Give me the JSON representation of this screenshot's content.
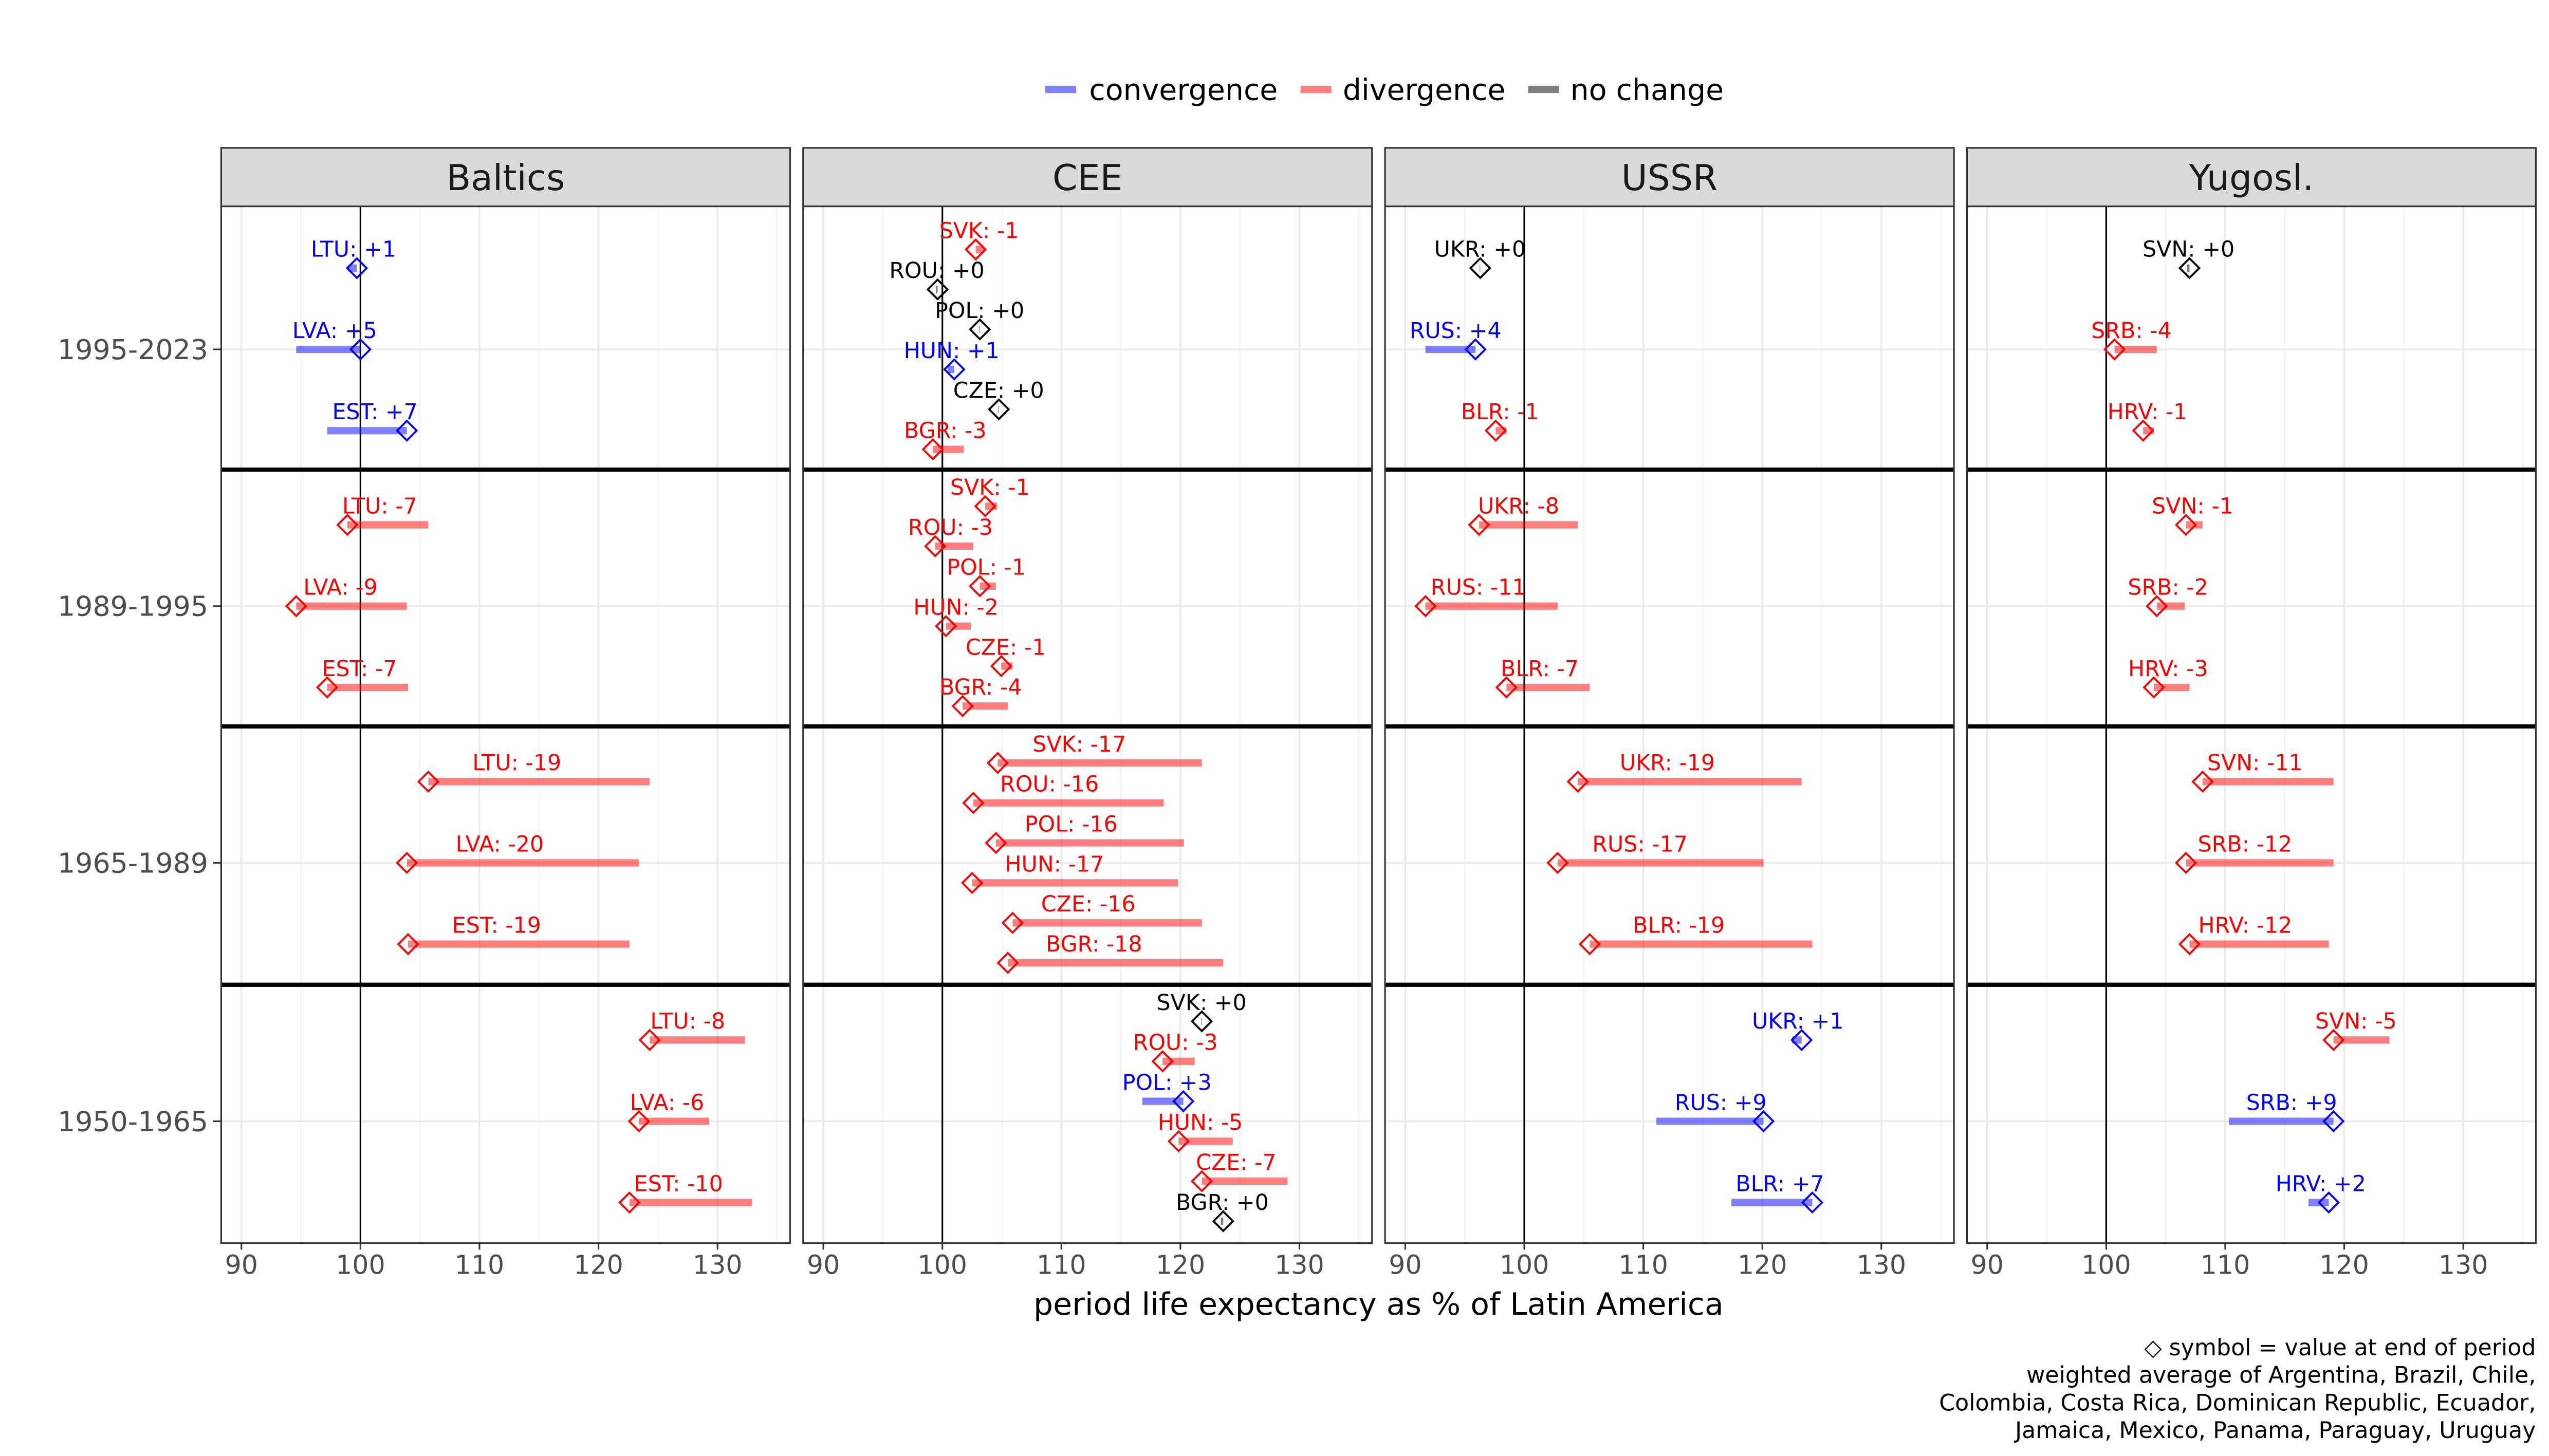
{
  "chart_data": {
    "type": "scatter",
    "xlabel": "period life expectancy as % of Latin America",
    "xticks": [
      90,
      100,
      110,
      120,
      130
    ],
    "xlim": [
      88.3,
      136.1
    ],
    "reference_line": 100,
    "grid": true,
    "legend": {
      "placement": "top",
      "entries": [
        {
          "label": "convergence",
          "color": "#0000FF"
        },
        {
          "label": "divergence",
          "color": "#FF0000"
        },
        {
          "label": "no change",
          "color": "#000000"
        }
      ]
    },
    "periods": [
      "1995-2023",
      "1989-1995",
      "1965-1989",
      "1950-1965"
    ],
    "caption": [
      "◇ symbol = value at end of period",
      "weighted average of Argentina, Brazil, Chile,",
      "Colombia, Costa Rica, Dominican Republic, Ecuador,",
      "Jamaica, Mexico, Panama, Paraguay, Uruguay"
    ],
    "panels": [
      {
        "facet": "Baltics",
        "rows": [
          {
            "period": "1995-2023",
            "points": [
              {
                "country": "LTU",
                "start": 99.0,
                "end": 99.7,
                "label": "LTU: +1",
                "status": "convergence"
              },
              {
                "country": "LVA",
                "start": 94.6,
                "end": 100.0,
                "label": "LVA: +5",
                "status": "convergence"
              },
              {
                "country": "EST",
                "start": 97.2,
                "end": 103.9,
                "label": "EST: +7",
                "status": "convergence"
              }
            ]
          },
          {
            "period": "1989-1995",
            "points": [
              {
                "country": "LTU",
                "start": 105.7,
                "end": 98.9,
                "label": "LTU: -7",
                "status": "divergence"
              },
              {
                "country": "LVA",
                "start": 103.9,
                "end": 94.6,
                "label": "LVA: -9",
                "status": "divergence"
              },
              {
                "country": "EST",
                "start": 104.0,
                "end": 97.2,
                "label": "EST: -7",
                "status": "divergence"
              }
            ]
          },
          {
            "period": "1965-1989",
            "points": [
              {
                "country": "LTU",
                "start": 124.3,
                "end": 105.7,
                "label": "LTU: -19",
                "status": "divergence"
              },
              {
                "country": "LVA",
                "start": 123.4,
                "end": 103.9,
                "label": "LVA: -20",
                "status": "divergence"
              },
              {
                "country": "EST",
                "start": 122.6,
                "end": 104.0,
                "label": "EST: -19",
                "status": "divergence"
              }
            ]
          },
          {
            "period": "1950-1965",
            "points": [
              {
                "country": "LTU",
                "start": 132.3,
                "end": 124.3,
                "label": "LTU: -8",
                "status": "divergence"
              },
              {
                "country": "LVA",
                "start": 129.3,
                "end": 123.4,
                "label": "LVA: -6",
                "status": "divergence"
              },
              {
                "country": "EST",
                "start": 132.9,
                "end": 122.6,
                "label": "EST: -10",
                "status": "divergence"
              }
            ]
          }
        ]
      },
      {
        "facet": "CEE",
        "rows": [
          {
            "period": "1995-2023",
            "points": [
              {
                "country": "SVK",
                "start": 103.5,
                "end": 102.8,
                "label": "SVK: -1",
                "status": "divergence"
              },
              {
                "country": "ROU",
                "start": 99.45,
                "end": 99.6,
                "label": "ROU: +0",
                "status": "no change"
              },
              {
                "country": "POL",
                "start": 103.1,
                "end": 103.15,
                "label": "POL: +0",
                "status": "no change"
              },
              {
                "country": "HUN",
                "start": 100.45,
                "end": 101.0,
                "label": "HUN: +1",
                "status": "convergence"
              },
              {
                "country": "CZE",
                "start": 104.7,
                "end": 104.75,
                "label": "CZE: +0",
                "status": "no change"
              },
              {
                "country": "BGR",
                "start": 101.8,
                "end": 99.2,
                "label": "BGR: -3",
                "status": "divergence"
              }
            ]
          },
          {
            "period": "1989-1995",
            "points": [
              {
                "country": "SVK",
                "start": 104.6,
                "end": 103.6,
                "label": "SVK: -1",
                "status": "divergence"
              },
              {
                "country": "ROU",
                "start": 102.6,
                "end": 99.4,
                "label": "ROU: -3",
                "status": "divergence"
              },
              {
                "country": "POL",
                "start": 104.5,
                "end": 103.15,
                "label": "POL: -1",
                "status": "divergence"
              },
              {
                "country": "HUN",
                "start": 102.4,
                "end": 100.3,
                "label": "HUN: -2",
                "status": "divergence"
              },
              {
                "country": "CZE",
                "start": 105.9,
                "end": 104.95,
                "label": "CZE: -1",
                "status": "divergence"
              },
              {
                "country": "BGR",
                "start": 105.5,
                "end": 101.7,
                "label": "BGR: -4",
                "status": "divergence"
              }
            ]
          },
          {
            "period": "1965-1989",
            "points": [
              {
                "country": "SVK",
                "start": 121.8,
                "end": 104.65,
                "label": "SVK: -17",
                "status": "divergence"
              },
              {
                "country": "ROU",
                "start": 118.6,
                "end": 102.6,
                "label": "ROU: -16",
                "status": "divergence"
              },
              {
                "country": "POL",
                "start": 120.3,
                "end": 104.5,
                "label": "POL: -16",
                "status": "divergence"
              },
              {
                "country": "HUN",
                "start": 119.8,
                "end": 102.5,
                "label": "HUN: -17",
                "status": "divergence"
              },
              {
                "country": "CZE",
                "start": 121.8,
                "end": 105.9,
                "label": "CZE: -16",
                "status": "divergence"
              },
              {
                "country": "BGR",
                "start": 123.6,
                "end": 105.5,
                "label": "BGR: -18",
                "status": "divergence"
              }
            ]
          },
          {
            "period": "1950-1965",
            "points": [
              {
                "country": "SVK",
                "start": 121.75,
                "end": 121.8,
                "label": "SVK: +0",
                "status": "no change"
              },
              {
                "country": "ROU",
                "start": 121.2,
                "end": 118.5,
                "label": "ROU: -3",
                "status": "divergence"
              },
              {
                "country": "POL",
                "start": 116.8,
                "end": 120.25,
                "label": "POL: +3",
                "status": "convergence"
              },
              {
                "country": "HUN",
                "start": 124.4,
                "end": 119.85,
                "label": "HUN: -5",
                "status": "divergence"
              },
              {
                "country": "CZE",
                "start": 129.0,
                "end": 121.8,
                "label": "CZE: -7",
                "status": "divergence"
              },
              {
                "country": "BGR",
                "start": 123.4,
                "end": 123.6,
                "label": "BGR: +0",
                "status": "no change"
              }
            ]
          }
        ]
      },
      {
        "facet": "USSR",
        "rows": [
          {
            "period": "1995-2023",
            "points": [
              {
                "country": "UKR",
                "start": 96.25,
                "end": 96.3,
                "label": "UKR: +0",
                "status": "no change"
              },
              {
                "country": "RUS",
                "start": 91.7,
                "end": 95.9,
                "label": "RUS: +4",
                "status": "convergence"
              },
              {
                "country": "BLR",
                "start": 98.5,
                "end": 97.6,
                "label": "BLR: -1",
                "status": "divergence"
              }
            ]
          },
          {
            "period": "1989-1995",
            "points": [
              {
                "country": "UKR",
                "start": 104.5,
                "end": 96.2,
                "label": "UKR: -8",
                "status": "divergence"
              },
              {
                "country": "RUS",
                "start": 102.8,
                "end": 91.7,
                "label": "RUS: -11",
                "status": "divergence"
              },
              {
                "country": "BLR",
                "start": 105.5,
                "end": 98.5,
                "label": "BLR: -7",
                "status": "divergence"
              }
            ]
          },
          {
            "period": "1965-1989",
            "points": [
              {
                "country": "UKR",
                "start": 123.3,
                "end": 104.5,
                "label": "UKR: -19",
                "status": "divergence"
              },
              {
                "country": "RUS",
                "start": 120.1,
                "end": 102.8,
                "label": "RUS: -17",
                "status": "divergence"
              },
              {
                "country": "BLR",
                "start": 124.2,
                "end": 105.5,
                "label": "BLR: -19",
                "status": "divergence"
              }
            ]
          },
          {
            "period": "1950-1965",
            "points": [
              {
                "country": "UKR",
                "start": 122.5,
                "end": 123.3,
                "label": "UKR: +1",
                "status": "convergence"
              },
              {
                "country": "RUS",
                "start": 111.1,
                "end": 120.1,
                "label": "RUS: +9",
                "status": "convergence"
              },
              {
                "country": "BLR",
                "start": 117.4,
                "end": 124.2,
                "label": "BLR: +7",
                "status": "convergence"
              }
            ]
          }
        ]
      },
      {
        "facet": "Yugosl.",
        "rows": [
          {
            "period": "1995-2023",
            "points": [
              {
                "country": "SVN",
                "start": 106.8,
                "end": 107.0,
                "label": "SVN: +0",
                "status": "no change"
              },
              {
                "country": "SRB",
                "start": 104.25,
                "end": 100.7,
                "label": "SRB: -4",
                "status": "divergence"
              },
              {
                "country": "HRV",
                "start": 104.0,
                "end": 103.1,
                "label": "HRV: -1",
                "status": "divergence"
              }
            ]
          },
          {
            "period": "1989-1995",
            "points": [
              {
                "country": "SVN",
                "start": 108.1,
                "end": 106.7,
                "label": "SVN: -1",
                "status": "divergence"
              },
              {
                "country": "SRB",
                "start": 106.6,
                "end": 104.25,
                "label": "SRB: -2",
                "status": "divergence"
              },
              {
                "country": "HRV",
                "start": 107.0,
                "end": 104.0,
                "label": "HRV: -3",
                "status": "divergence"
              }
            ]
          },
          {
            "period": "1965-1989",
            "points": [
              {
                "country": "SVN",
                "start": 119.1,
                "end": 108.1,
                "label": "SVN: -11",
                "status": "divergence"
              },
              {
                "country": "SRB",
                "start": 119.1,
                "end": 106.7,
                "label": "SRB: -12",
                "status": "divergence"
              },
              {
                "country": "HRV",
                "start": 118.7,
                "end": 107.0,
                "label": "HRV: -12",
                "status": "divergence"
              }
            ]
          },
          {
            "period": "1950-1965",
            "points": [
              {
                "country": "SVN",
                "start": 123.8,
                "end": 119.1,
                "label": "SVN: -5",
                "status": "divergence"
              },
              {
                "country": "SRB",
                "start": 110.3,
                "end": 119.1,
                "label": "SRB: +9",
                "status": "convergence"
              },
              {
                "country": "HRV",
                "start": 117.0,
                "end": 118.7,
                "label": "HRV: +2",
                "status": "convergence"
              }
            ]
          }
        ]
      }
    ]
  }
}
